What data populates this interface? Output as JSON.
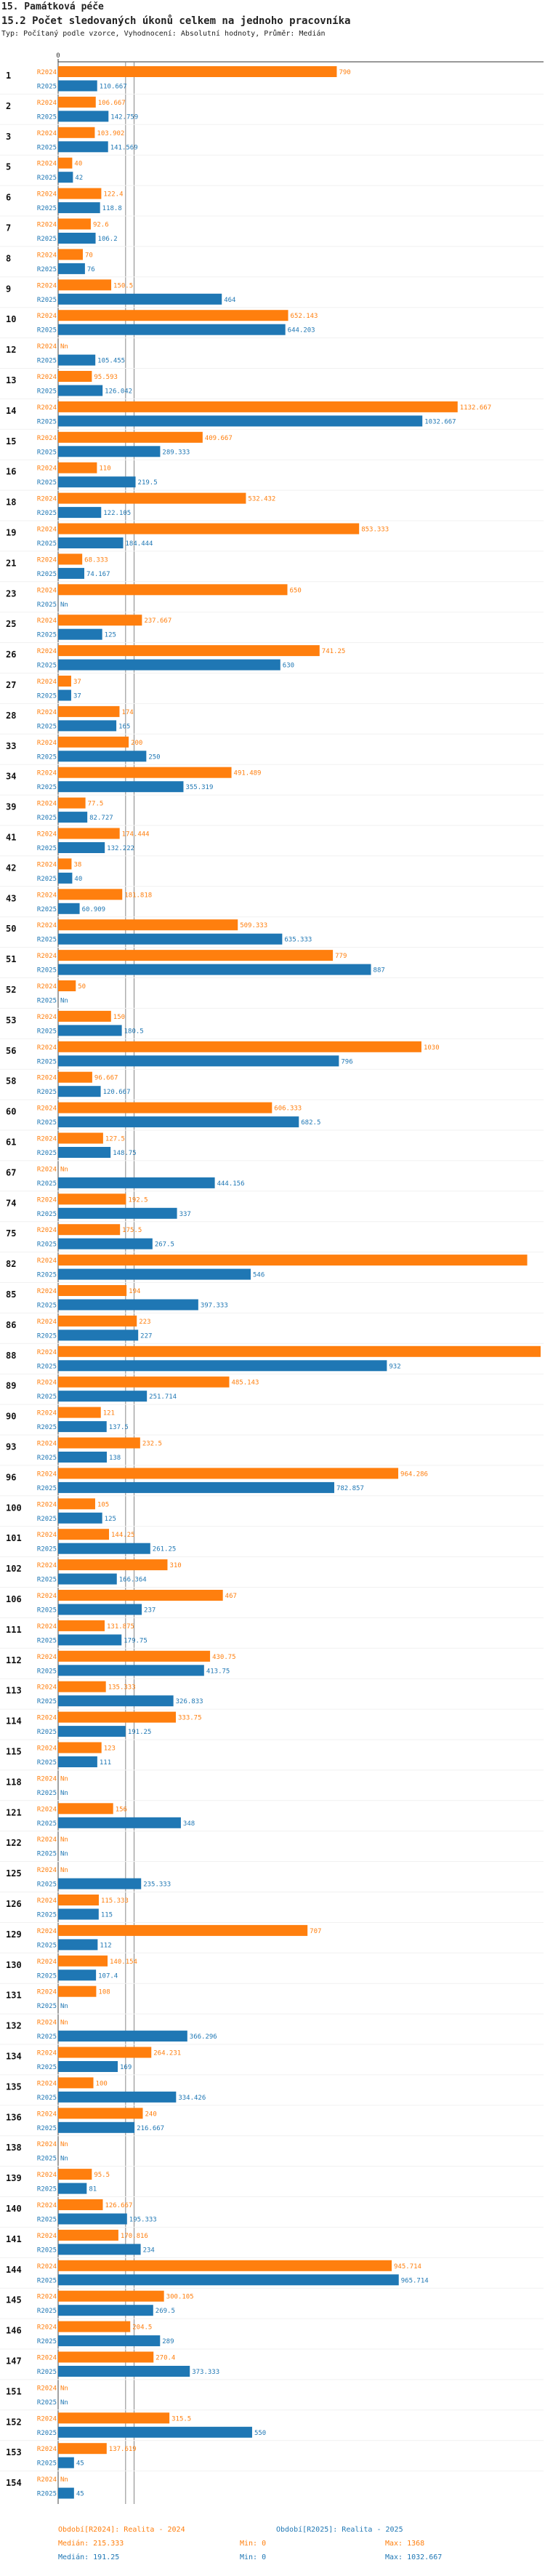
{
  "header": {
    "title": "15. Památková péče",
    "subtitle": "15.2 Počet sledovaných úkonů celkem na jednoho pracovníka",
    "description": "Typ: Počítaný podle vzorce, Vyhodnocení: Absolutní hodnoty, Průměr: Medián"
  },
  "colors": {
    "r2024": "#ff7f0e",
    "r2025": "#1f77b4",
    "median": "#888888"
  },
  "chart_data": {
    "type": "bar",
    "orientation": "horizontal",
    "xlim": [
      0,
      1368
    ],
    "axis_zero_label": "0",
    "series_names": [
      "R2024",
      "R2025"
    ],
    "medians": [
      215.333,
      191.25
    ],
    "categories": [
      "1",
      "2",
      "3",
      "5",
      "6",
      "7",
      "8",
      "9",
      "10",
      "12",
      "13",
      "14",
      "15",
      "16",
      "18",
      "19",
      "21",
      "23",
      "25",
      "26",
      "27",
      "28",
      "33",
      "34",
      "39",
      "41",
      "42",
      "43",
      "50",
      "51",
      "52",
      "53",
      "56",
      "58",
      "60",
      "61",
      "67",
      "74",
      "75",
      "82",
      "85",
      "86",
      "88",
      "89",
      "90",
      "93",
      "96",
      "100",
      "101",
      "102",
      "106",
      "111",
      "112",
      "113",
      "114",
      "115",
      "118",
      "121",
      "122",
      "125",
      "126",
      "129",
      "130",
      "131",
      "132",
      "134",
      "135",
      "136",
      "138",
      "139",
      "140",
      "141",
      "144",
      "145",
      "146",
      "147",
      "151",
      "152",
      "153",
      "154"
    ],
    "series": [
      {
        "name": "R2024",
        "values": [
          790,
          106.667,
          103.902,
          40,
          122.4,
          92.6,
          70,
          150.5,
          652.143,
          null,
          95.593,
          1132.667,
          409.667,
          110,
          532.432,
          853.333,
          68.333,
          650,
          237.667,
          741.25,
          37,
          174,
          200,
          491.489,
          77.5,
          174.444,
          38,
          181.818,
          509.333,
          779,
          50,
          150,
          1030,
          96.667,
          606.333,
          127.5,
          null,
          192.5,
          175.5,
          1330,
          194,
          223,
          1368,
          485.143,
          121,
          232.5,
          964.286,
          105,
          144.25,
          310,
          467,
          131.875,
          430.75,
          135.333,
          333.75,
          123,
          null,
          156,
          null,
          null,
          115.333,
          707,
          140.154,
          108,
          null,
          264.231,
          100,
          240,
          null,
          95.5,
          126.667,
          170.816,
          945.714,
          300.105,
          204.5,
          270.4,
          null,
          315.5,
          137.619,
          null
        ]
      },
      {
        "name": "R2025",
        "values": [
          110.667,
          142.759,
          141.569,
          42,
          118.8,
          106.2,
          76,
          464,
          644.203,
          105.455,
          126.042,
          1032.667,
          289.333,
          219.5,
          122.105,
          184.444,
          74.167,
          null,
          125,
          630,
          37,
          165,
          250,
          355.319,
          82.727,
          132.222,
          40,
          60.909,
          635.333,
          887,
          null,
          180.5,
          796,
          120.667,
          682.5,
          148.75,
          444.156,
          337,
          267.5,
          546,
          397.333,
          227,
          932,
          251.714,
          137.5,
          138,
          782.857,
          125,
          261.25,
          166.364,
          237,
          179.75,
          413.75,
          326.833,
          191.25,
          111,
          null,
          348,
          null,
          235.333,
          115,
          112,
          107.4,
          null,
          366.296,
          169,
          334.426,
          216.667,
          null,
          81,
          195.333,
          234,
          965.714,
          269.5,
          289,
          373.333,
          null,
          550,
          45,
          45
        ]
      }
    ],
    "legend": [
      {
        "period": "Období[R2024]: Realita - 2024",
        "median": "Medián: 215.333",
        "min": "Min: 0",
        "max": "Max: 1368"
      },
      {
        "period": "Období[R2025]: Realita - 2025",
        "median": "Medián: 191.25",
        "min": "Min: 0",
        "max": "Max: 1032.667"
      }
    ]
  }
}
